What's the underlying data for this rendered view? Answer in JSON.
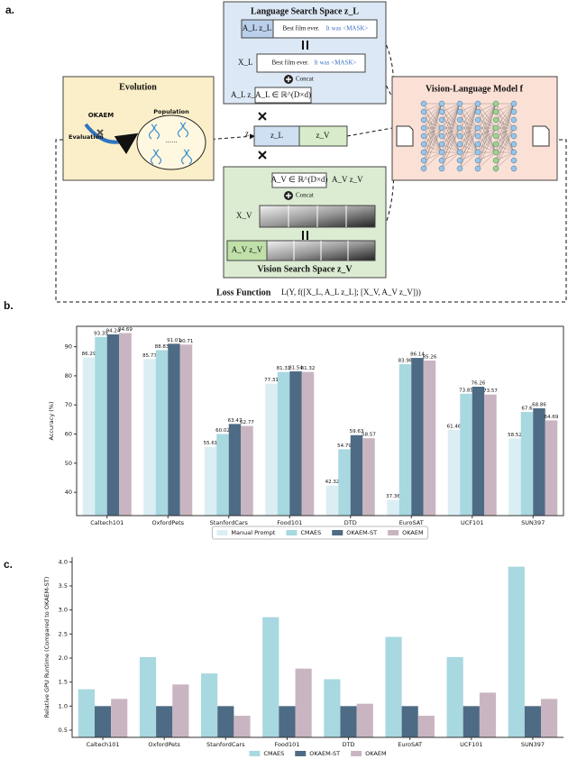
{
  "figure": {
    "panels": [
      "a.",
      "b.",
      "c."
    ]
  },
  "diagram": {
    "evolution": {
      "title": "Evolution",
      "algorithm": "OKAEM",
      "evaluation": "Evaluation",
      "population": "Population",
      "dots": "......"
    },
    "language": {
      "title": "Language Search Space z_L",
      "projection_top": "A_L z_L",
      "prompt_start_top": "Best film ever.",
      "prompt_mask_top": "It was <MASK>",
      "input": "X_L",
      "prompt_start": "Best film ever.",
      "prompt_mask": "It was <MASK>",
      "concat": "Concat",
      "projection": "A_L z_L",
      "matrix": "A_L ∈ ℝ^(D×d)"
    },
    "latent": {
      "z": "z",
      "z_language": "z_L",
      "z_vision": "z_V"
    },
    "vision": {
      "matrix": "A_V ∈ ℝ^(D×d)",
      "projection": "A_V z_V",
      "concat": "Concat",
      "input": "X_V",
      "projection_box": "A_V z_V",
      "title": "Vision Search Space z_V"
    },
    "model": {
      "title": "Vision-Language Model  f"
    },
    "loss": {
      "label": "Loss Function",
      "formula": "L(Y, f([X_L, A_L z_L]; [X_V, A_V z_V]))"
    }
  },
  "chart_data": [
    {
      "type": "bar",
      "y_label": "Accuracy (%)",
      "data_labels": true,
      "categories": [
        "Caltech101",
        "OxfordPets",
        "StanfordCars",
        "Food101",
        "DTD",
        "EuroSAT",
        "UCF101",
        "SUN397"
      ],
      "series": [
        {
          "name": "Manual Prompt",
          "color": "#dbeef4",
          "values": [
            86.29,
            85.77,
            55.61,
            77.31,
            42.32,
            37.36,
            61.46,
            58.52
          ]
        },
        {
          "name": "CMAES",
          "color": "#a8d8e0",
          "values": [
            93.35,
            88.83,
            60.02,
            81.31,
            54.79,
            83.98,
            73.85,
            67.6
          ]
        },
        {
          "name": "OKAEM-ST",
          "color": "#4e6b85",
          "values": [
            94.24,
            91.01,
            63.47,
            81.54,
            59.63,
            86.14,
            76.26,
            68.86
          ]
        },
        {
          "name": "OKAEM",
          "color": "#c9b5c1",
          "values": [
            94.69,
            90.71,
            62.77,
            81.32,
            58.57,
            85.26,
            73.57,
            64.69
          ]
        }
      ],
      "ylim": [
        32,
        97
      ],
      "yticks": [
        40,
        50,
        60,
        70,
        80,
        90
      ],
      "legend": "lower center"
    },
    {
      "type": "bar",
      "y_label": "Relative GPU Runtime (Compared to OKAEM-ST)",
      "data_labels": false,
      "categories": [
        "Caltech101",
        "OxfordPets",
        "StanfordCars",
        "Food101",
        "DTD",
        "EuroSAT",
        "UCF101",
        "SUN397"
      ],
      "series": [
        {
          "name": "CMAES",
          "color": "#a8d8e0",
          "values": [
            1.35,
            2.02,
            1.68,
            2.85,
            1.56,
            2.44,
            2.02,
            3.9
          ]
        },
        {
          "name": "OKAEM-ST",
          "color": "#4e6b85",
          "values": [
            1,
            1,
            1,
            1,
            1,
            1,
            1,
            1
          ]
        },
        {
          "name": "OKAEM",
          "color": "#c9b5c1",
          "values": [
            1.15,
            1.45,
            0.8,
            1.78,
            1.05,
            0.8,
            1.28,
            1.15
          ]
        }
      ],
      "ylim": [
        0.35,
        4.1
      ],
      "yticks": [
        0.5,
        {
          "value": 1,
          "label": "1.0"
        },
        1.5,
        {
          "value": 2,
          "label": "2.0"
        },
        2.5,
        {
          "value": 3,
          "label": "3.0"
        },
        3.5,
        {
          "value": 4,
          "label": "4.0"
        }
      ],
      "legend": "lower center"
    }
  ]
}
